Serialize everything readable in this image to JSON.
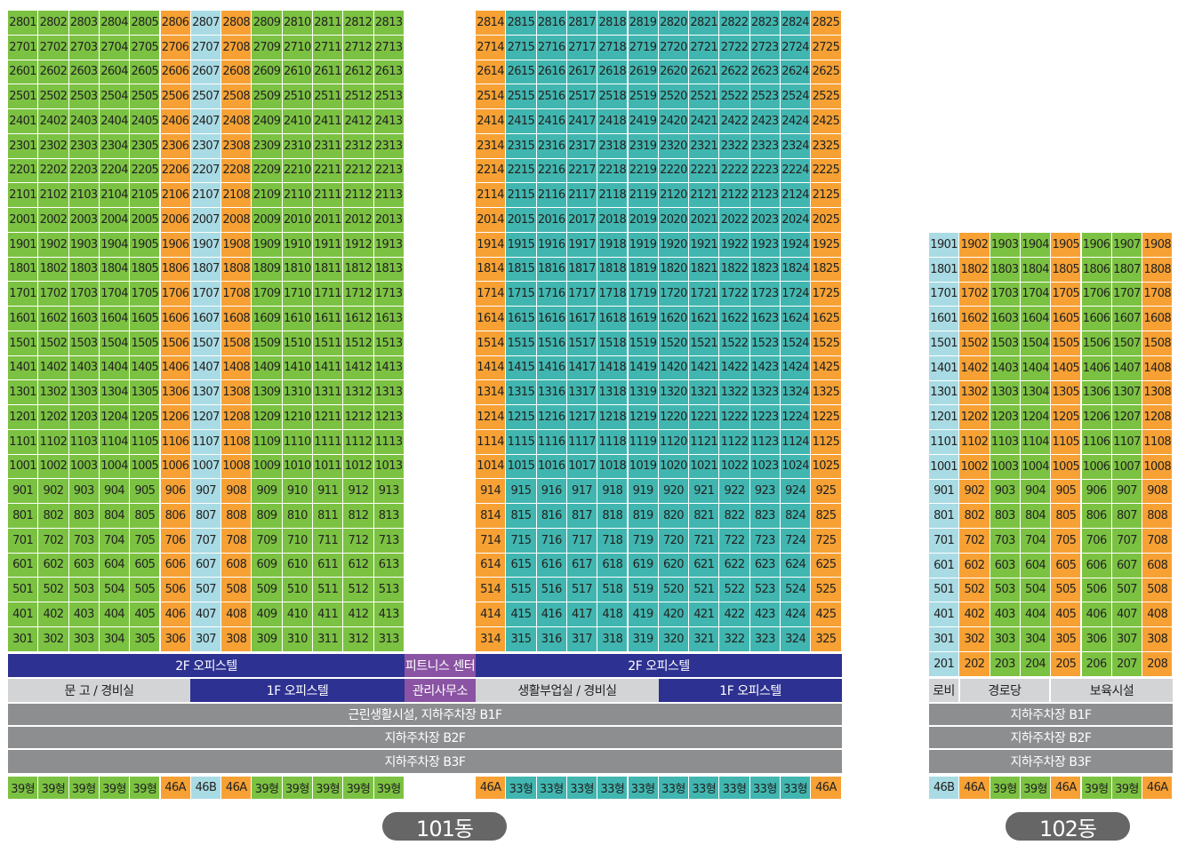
{
  "colors": {
    "39": "#7cc242",
    "46A": "#f7a134",
    "46B": "#a9dbe4",
    "33": "#41b6b0",
    "blue": "#2d3191",
    "purple": "#8a53a3",
    "gray": "#8d8e90",
    "lightgray": "#d3d4d5"
  },
  "bldg101": {
    "label": "101동",
    "left_columns": [
      "01",
      "02",
      "03",
      "04",
      "05",
      "06",
      "07",
      "08",
      "09",
      "10",
      "11",
      "12",
      "13"
    ],
    "left_types": [
      "39",
      "39",
      "39",
      "39",
      "39",
      "46A",
      "46B",
      "46A",
      "39",
      "39",
      "39",
      "39",
      "39"
    ],
    "right_columns": [
      "14",
      "15",
      "16",
      "17",
      "18",
      "19",
      "20",
      "21",
      "22",
      "23",
      "24",
      "25"
    ],
    "right_types": [
      "46A",
      "33",
      "33",
      "33",
      "33",
      "33",
      "33",
      "33",
      "33",
      "33",
      "33",
      "46A"
    ],
    "floor_top": 28,
    "floor_bottom": 3,
    "type_labels_left": [
      "39형",
      "39형",
      "39형",
      "39형",
      "39형",
      "46A",
      "46B",
      "46A",
      "39형",
      "39형",
      "39형",
      "39형",
      "39형"
    ],
    "type_labels_right": [
      "46A",
      "33형",
      "33형",
      "33형",
      "33형",
      "33형",
      "33형",
      "33형",
      "33형",
      "33형",
      "33형",
      "46A"
    ],
    "bars": {
      "f2_left": "2F 오피스텔",
      "fitness": "피트니스 센터",
      "f2_right": "2F 오피스텔",
      "storage": "문 고 / 경비실",
      "f1_left": "1F 오피스텔",
      "mgmt": "관리사무소",
      "facility": "생활부업실 / 경비실",
      "f1_right": "1F 오피스텔",
      "b1": "근린생활시설, 지하주차장 B1F",
      "b2": "지하주차장 B2F",
      "b3": "지하주차장 B3F"
    }
  },
  "bldg102": {
    "label": "102동",
    "columns": [
      "01",
      "02",
      "03",
      "04",
      "05",
      "06",
      "07",
      "08"
    ],
    "types": [
      "46B",
      "46A",
      "39",
      "39",
      "46A",
      "39",
      "39",
      "46A"
    ],
    "floor_top": 19,
    "floor_bottom": 2,
    "type_labels": [
      "46B",
      "46A",
      "39형",
      "39형",
      "46A",
      "39형",
      "39형",
      "46A"
    ],
    "bars": {
      "lobby": "로비",
      "senior": "경로당",
      "childcare": "보육시설",
      "b1": "지하주차장 B1F",
      "b2": "지하주차장 B2F",
      "b3": "지하주차장 B3F"
    }
  }
}
